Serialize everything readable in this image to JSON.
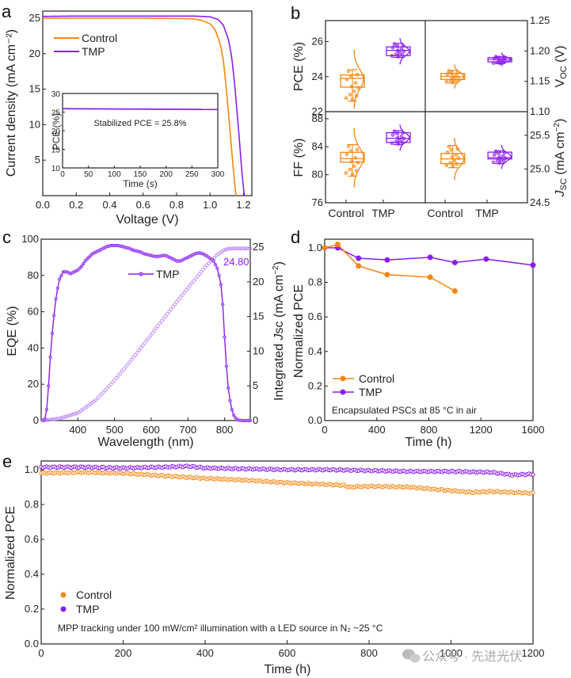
{
  "colors": {
    "control": "#f7860f",
    "tmp": "#8b1cf2",
    "axis": "#222222"
  },
  "watermark": "公众号 · 先进光伏",
  "chart_data": [
    {
      "panel": "a",
      "type": "line",
      "xlabel": "Voltage (V)",
      "ylabel": "Current density (mA cm⁻²)",
      "xlim": [
        0,
        1.25
      ],
      "ylim": [
        0,
        26
      ],
      "xticks": [
        "0.0",
        "0.2",
        "0.4",
        "0.6",
        "0.8",
        "1.0",
        "1.2"
      ],
      "xtick_values": [
        0,
        0.2,
        0.4,
        0.6,
        0.8,
        1.0,
        1.2
      ],
      "yticks": [
        "5",
        "10",
        "15",
        "20",
        "25"
      ],
      "ytick_values": [
        5,
        10,
        15,
        20,
        25
      ],
      "legend": {
        "position": "top-left",
        "entries": [
          "Control",
          "TMP"
        ]
      },
      "series": [
        {
          "name": "Control",
          "x": [
            0,
            0.2,
            0.4,
            0.6,
            0.8,
            0.9,
            0.95,
            1.0,
            1.03,
            1.06,
            1.08,
            1.1,
            1.12,
            1.14,
            1.155
          ],
          "y": [
            25.0,
            25.0,
            25.0,
            25.0,
            24.95,
            24.9,
            24.7,
            24.2,
            23.4,
            21.5,
            19.0,
            14.5,
            9.0,
            3.5,
            0
          ]
        },
        {
          "name": "TMP",
          "x": [
            0,
            0.2,
            0.4,
            0.6,
            0.8,
            0.9,
            1.0,
            1.05,
            1.08,
            1.11,
            1.13,
            1.15,
            1.17,
            1.19,
            1.205
          ],
          "y": [
            25.25,
            25.3,
            25.3,
            25.3,
            25.3,
            25.3,
            25.2,
            24.8,
            24.0,
            22.0,
            19.5,
            15.0,
            9.5,
            3.5,
            0
          ]
        }
      ],
      "inset": {
        "type": "line",
        "xlabel": "Time (s)",
        "ylabel": "PCE (%)",
        "xlim": [
          0,
          300
        ],
        "ylim": [
          10,
          30
        ],
        "xticks": [
          "0",
          "50",
          "100",
          "150",
          "200",
          "250",
          "300"
        ],
        "xtick_values": [
          0,
          50,
          100,
          150,
          200,
          250,
          300
        ],
        "yticks": [
          "10",
          "15",
          "20",
          "25",
          "30"
        ],
        "ytick_values": [
          10,
          15,
          20,
          25,
          30
        ],
        "annotation": "Stabilized PCE = 25.8%",
        "series": [
          {
            "name": "TMP",
            "x": [
              0,
              300
            ],
            "y": [
              25.9,
              25.7
            ]
          }
        ]
      }
    },
    {
      "panel": "b",
      "type": "box",
      "categories": [
        "Control",
        "TMP",
        "Control",
        "TMP"
      ],
      "subplots": [
        {
          "metric": "PCE (%)",
          "axis": "left-top",
          "ylim": [
            22,
            27.2
          ],
          "yticks": [
            "22",
            "24",
            "26"
          ],
          "ytick_values": [
            22,
            24,
            26
          ],
          "groups": [
            {
              "name": "Control",
              "q1": 23.4,
              "median": 23.9,
              "mean": 23.85,
              "q3": 24.1,
              "whisker_low": 22.6,
              "whisker_high": 24.4
            },
            {
              "name": "TMP",
              "q1": 25.2,
              "median": 25.5,
              "mean": 25.45,
              "q3": 25.7,
              "whisker_low": 25.1,
              "whisker_high": 25.9
            }
          ]
        },
        {
          "metric": "V_OC (V)",
          "axis": "right-top",
          "ylim": [
            1.1,
            1.25
          ],
          "yticks": [
            "1.10",
            "1.15",
            "1.20",
            "1.25"
          ],
          "ytick_values": [
            1.1,
            1.15,
            1.2,
            1.25
          ],
          "groups": [
            {
              "name": "Control",
              "q1": 1.153,
              "median": 1.158,
              "mean": 1.158,
              "q3": 1.163,
              "whisker_low": 1.147,
              "whisker_high": 1.168
            },
            {
              "name": "TMP",
              "q1": 1.182,
              "median": 1.186,
              "mean": 1.186,
              "q3": 1.189,
              "whisker_low": 1.179,
              "whisker_high": 1.191
            }
          ]
        },
        {
          "metric": "FF (%)",
          "axis": "left-bottom",
          "ylim": [
            76,
            89
          ],
          "yticks": [
            "76",
            "80",
            "84",
            "88"
          ],
          "ytick_values": [
            76,
            80,
            84,
            88
          ],
          "groups": [
            {
              "name": "Control",
              "q1": 81.8,
              "median": 82.3,
              "mean": 82.4,
              "q3": 83.2,
              "whisker_low": 79.8,
              "whisker_high": 84.3
            },
            {
              "name": "TMP",
              "q1": 84.6,
              "median": 85.2,
              "mean": 85.3,
              "q3": 86.0,
              "whisker_low": 84.3,
              "whisker_high": 86.3
            }
          ]
        },
        {
          "metric": "J_SC (mA cm⁻²)",
          "axis": "right-bottom",
          "ylim": [
            24.5,
            25.85
          ],
          "yticks": [
            "24.5",
            "25.0",
            "25.5"
          ],
          "ytick_values": [
            24.5,
            25.0,
            25.5
          ],
          "groups": [
            {
              "name": "Control",
              "q1": 25.08,
              "median": 25.15,
              "mean": 25.15,
              "q3": 25.23,
              "whisker_low": 25.02,
              "whisker_high": 25.35
            },
            {
              "name": "TMP",
              "q1": 25.15,
              "median": 25.17,
              "mean": 25.18,
              "q3": 25.25,
              "whisker_low": 25.08,
              "whisker_high": 25.27
            }
          ]
        }
      ]
    },
    {
      "panel": "c",
      "type": "line",
      "xlabel": "Wavelength (nm)",
      "ylabel": "EQE (%)",
      "ylabel_right": "Integrated Jsc (mA cm⁻²)",
      "xlim": [
        300,
        870
      ],
      "ylim": [
        0,
        100
      ],
      "ylim_right": [
        0,
        25
      ],
      "xticks": [
        "400",
        "500",
        "600",
        "700",
        "800"
      ],
      "xtick_values": [
        400,
        500,
        600,
        700,
        800
      ],
      "yticks": [
        "0",
        "20",
        "40",
        "60",
        "80",
        "100"
      ],
      "ytick_values": [
        0,
        20,
        40,
        60,
        80,
        100
      ],
      "yticks_right": [
        "0",
        "5",
        "10",
        "15",
        "20",
        "25"
      ],
      "ytick_values_right": [
        0,
        5,
        10,
        15,
        20,
        25
      ],
      "legend": {
        "position": "top-center",
        "entries": [
          "TMP"
        ]
      },
      "annotation": "24.80",
      "eqe": {
        "name": "TMP",
        "x": [
          305,
          310,
          315,
          320,
          325,
          330,
          335,
          340,
          345,
          350,
          355,
          360,
          365,
          370,
          375,
          380,
          385,
          390,
          395,
          400,
          410,
          420,
          430,
          440,
          450,
          460,
          470,
          480,
          490,
          500,
          510,
          520,
          530,
          540,
          550,
          560,
          570,
          580,
          590,
          600,
          610,
          620,
          630,
          640,
          650,
          660,
          670,
          680,
          690,
          700,
          710,
          720,
          730,
          740,
          750,
          760,
          770,
          780,
          785,
          790,
          795,
          800,
          805,
          810,
          815,
          820,
          825,
          830,
          835,
          840,
          850,
          860,
          870
        ],
        "y": [
          0,
          1,
          6,
          19,
          35,
          48,
          58,
          67,
          73,
          78,
          80,
          82,
          82,
          82,
          81.5,
          81,
          81.5,
          82,
          82.5,
          83,
          85,
          88,
          90,
          92,
          93,
          94,
          95,
          96,
          96.5,
          96.5,
          96.5,
          96,
          95.5,
          95,
          94,
          93.5,
          93,
          92,
          91.5,
          91,
          90.5,
          90.5,
          91,
          91,
          90,
          89,
          88,
          88,
          89,
          90,
          91,
          92,
          92.5,
          92,
          91,
          89.5,
          88,
          84,
          80,
          75,
          64,
          46,
          30,
          18,
          11,
          6,
          3,
          1.5,
          0.5,
          0.2,
          0,
          0,
          0
        ]
      },
      "jsc": {
        "name": "TMP",
        "x": [
          305,
          350,
          400,
          450,
          500,
          550,
          600,
          650,
          700,
          750,
          780,
          800,
          810,
          820,
          830,
          850,
          870
        ],
        "y": [
          0,
          0.3,
          1.1,
          3.0,
          5.8,
          9.0,
          12.4,
          15.8,
          19.1,
          22.3,
          23.9,
          24.6,
          24.75,
          24.8,
          24.8,
          24.8,
          24.8
        ]
      }
    },
    {
      "panel": "d",
      "type": "line",
      "xlabel": "Time (h)",
      "ylabel": "Normalized PCE",
      "xlim": [
        0,
        1600
      ],
      "ylim": [
        0,
        1.05
      ],
      "xticks": [
        "0",
        "400",
        "800",
        "1200",
        "1600"
      ],
      "xtick_values": [
        0,
        400,
        800,
        1200,
        1600
      ],
      "yticks": [
        "0.0",
        "0.2",
        "0.4",
        "0.6",
        "0.8",
        "1.0"
      ],
      "ytick_values": [
        0,
        0.2,
        0.4,
        0.6,
        0.8,
        1.0
      ],
      "legend": {
        "position": "bottom-left",
        "entries": [
          "Control",
          "TMP"
        ]
      },
      "annotation": "Encapsulated PSCs at 85 °C in air",
      "series": [
        {
          "name": "Control",
          "x": [
            0,
            100,
            260,
            480,
            810,
            1000
          ],
          "y": [
            1.0,
            1.02,
            0.895,
            0.845,
            0.83,
            0.75
          ]
        },
        {
          "name": "TMP",
          "x": [
            0,
            100,
            260,
            480,
            810,
            1000,
            1240,
            1600
          ],
          "y": [
            1.0,
            1.0,
            0.94,
            0.93,
            0.945,
            0.915,
            0.935,
            0.9
          ]
        }
      ]
    },
    {
      "panel": "e",
      "type": "scatter",
      "xlabel": "Time (h)",
      "ylabel": "Normalized PCE",
      "xlim": [
        0,
        1200
      ],
      "ylim": [
        0,
        1.05
      ],
      "xticks": [
        "0",
        "200",
        "400",
        "600",
        "800",
        "1000",
        "1200"
      ],
      "xtick_values": [
        0,
        200,
        400,
        600,
        800,
        1000,
        1200
      ],
      "yticks": [
        "0.0",
        "0.2",
        "0.4",
        "0.6",
        "0.8",
        "1.0"
      ],
      "ytick_values": [
        0,
        0.2,
        0.4,
        0.6,
        0.8,
        1.0
      ],
      "legend": {
        "position": "bottom-left",
        "entries": [
          "Control",
          "TMP"
        ]
      },
      "annotation": "MPP tracking under 100 mW/cm² illumination with a LED  source in N₂ ~25 °C",
      "series": [
        {
          "name": "Control",
          "x": [
            0,
            100,
            200,
            300,
            400,
            500,
            600,
            700,
            740,
            750,
            800,
            900,
            950,
            1000,
            1050,
            1100,
            1200
          ],
          "y": [
            0.98,
            0.985,
            0.98,
            0.965,
            0.95,
            0.94,
            0.925,
            0.915,
            0.91,
            0.9,
            0.905,
            0.9,
            0.89,
            0.88,
            0.87,
            0.875,
            0.865
          ]
        },
        {
          "name": "TMP",
          "x": [
            0,
            100,
            200,
            300,
            360,
            400,
            500,
            600,
            700,
            800,
            900,
            1000,
            1100,
            1150,
            1200
          ],
          "y": [
            1.015,
            1.015,
            1.01,
            1.015,
            1.02,
            1.01,
            1.005,
            1.0,
            1.0,
            0.995,
            0.99,
            0.99,
            0.985,
            0.97,
            0.975
          ]
        }
      ]
    }
  ],
  "panel_labels": [
    "a",
    "b",
    "c",
    "d",
    "e"
  ]
}
